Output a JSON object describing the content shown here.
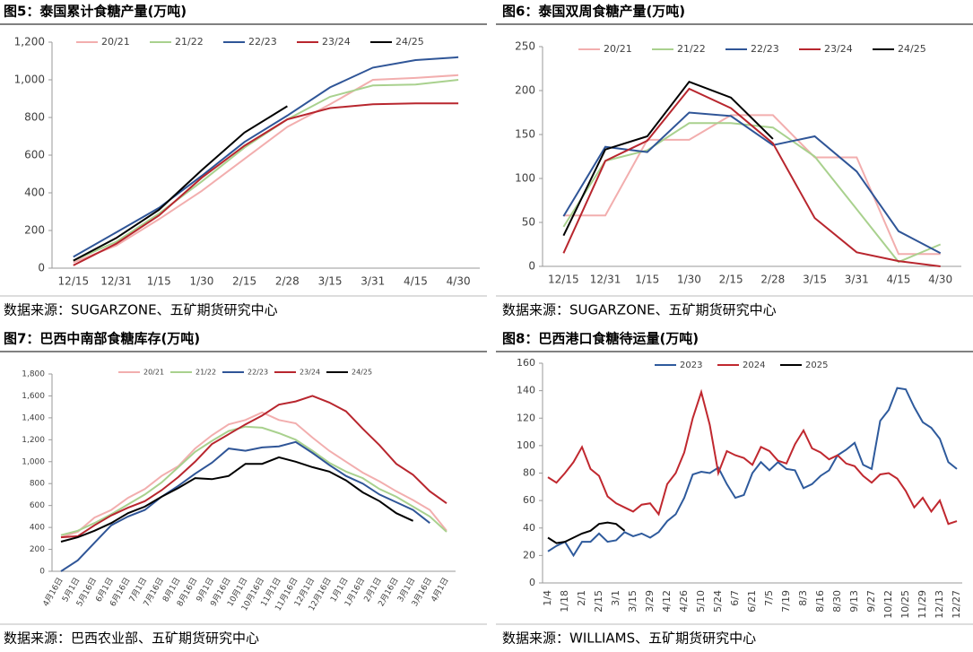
{
  "chart_data": [
    {
      "type": "line",
      "title": "图5：泰国累计食糖产量(万吨)",
      "source": "数据来源：SUGARZONE、五矿期货研究中心",
      "categories": [
        "12/15",
        "12/31",
        "1/15",
        "1/30",
        "2/15",
        "2/28",
        "3/15",
        "3/31",
        "4/15",
        "4/30"
      ],
      "ylim": [
        0,
        1200
      ],
      "yticks": [
        0,
        200,
        400,
        600,
        800,
        {
          "value": 1000,
          "label": "1,000"
        },
        {
          "value": 1200,
          "label": "1,200"
        }
      ],
      "legend": "top",
      "series": [
        {
          "name": "20/21",
          "color": "#f2aeae",
          "values": [
            30,
            120,
            260,
            410,
            580,
            750,
            870,
            1000,
            1010,
            1025
          ]
        },
        {
          "name": "21/22",
          "color": "#a9d18e",
          "values": [
            40,
            140,
            290,
            460,
            640,
            790,
            910,
            970,
            975,
            1000
          ]
        },
        {
          "name": "22/23",
          "color": "#2f5597",
          "values": [
            60,
            190,
            320,
            490,
            670,
            810,
            960,
            1065,
            1105,
            1120
          ]
        },
        {
          "name": "23/24",
          "color": "#b8262e",
          "values": [
            15,
            130,
            280,
            480,
            650,
            790,
            850,
            870,
            875,
            875
          ]
        },
        {
          "name": "24/25",
          "color": "#000000",
          "values": [
            40,
            160,
            310,
            520,
            720,
            860,
            null,
            null,
            null,
            null
          ]
        }
      ]
    },
    {
      "type": "line",
      "title": "图6：泰国双周食糖产量(万吨)",
      "source": "数据来源：SUGARZONE、五矿期货研究中心",
      "categories": [
        "12/15",
        "12/31",
        "1/15",
        "1/30",
        "2/15",
        "2/28",
        "3/15",
        "3/31",
        "4/15",
        "4/30"
      ],
      "ylim": [
        0,
        250
      ],
      "yticks": [
        0,
        50,
        100,
        150,
        200,
        250
      ],
      "legend": "top",
      "series": [
        {
          "name": "20/21",
          "color": "#f2aeae",
          "values": [
            58,
            58,
            144,
            144,
            172,
            172,
            124,
            124,
            14,
            14
          ]
        },
        {
          "name": "21/22",
          "color": "#a9d18e",
          "values": [
            45,
            120,
            132,
            163,
            163,
            158,
            125,
            65,
            5,
            25
          ]
        },
        {
          "name": "22/23",
          "color": "#2f5597",
          "values": [
            57,
            136,
            130,
            175,
            171,
            138,
            148,
            108,
            40,
            15
          ]
        },
        {
          "name": "23/24",
          "color": "#b8262e",
          "values": [
            15,
            120,
            143,
            202,
            180,
            140,
            55,
            16,
            6,
            0
          ]
        },
        {
          "name": "24/25",
          "color": "#000000",
          "values": [
            35,
            133,
            148,
            210,
            192,
            145,
            null,
            null,
            null,
            null
          ]
        }
      ]
    },
    {
      "type": "line",
      "title": "图7：巴西中南部食糖库存(万吨)",
      "source": "数据来源：巴西农业部、五矿期货研究中心",
      "categories": [
        "4月16日",
        "5月1日",
        "5月16日",
        "6月1日",
        "6月16日",
        "7月1日",
        "7月16日",
        "8月1日",
        "8月16日",
        "9月1日",
        "9月16日",
        "10月1日",
        "10月16日",
        "11月1日",
        "11月16日",
        "12月1日",
        "12月16日",
        "1月1日",
        "1月16日",
        "2月1日",
        "2月16日",
        "3月1日",
        "3月16日",
        "4月1日"
      ],
      "ylim": [
        0,
        1800
      ],
      "yticks": [
        0,
        200,
        400,
        600,
        800,
        {
          "value": 1000,
          "label": "1,000"
        },
        {
          "value": 1200,
          "label": "1,200"
        },
        {
          "value": 1400,
          "label": "1,400"
        },
        {
          "value": 1600,
          "label": "1,600"
        },
        {
          "value": 1800,
          "label": "1,800"
        }
      ],
      "legend": "top",
      "series": [
        {
          "name": "20/21",
          "color": "#f2aeae",
          "values": [
            310,
            360,
            490,
            560,
            670,
            750,
            870,
            960,
            1120,
            1240,
            1340,
            1380,
            1450,
            1380,
            1350,
            1220,
            1100,
            1000,
            900,
            820,
            730,
            650,
            560,
            370
          ]
        },
        {
          "name": "21/22",
          "color": "#a9d18e",
          "values": [
            330,
            370,
            440,
            520,
            610,
            700,
            810,
            950,
            1090,
            1190,
            1280,
            1320,
            1310,
            1260,
            1200,
            1100,
            990,
            910,
            850,
            750,
            680,
            590,
            500,
            360
          ]
        },
        {
          "name": "22/23",
          "color": "#2f5597",
          "values": [
            0,
            100,
            260,
            420,
            500,
            560,
            680,
            780,
            890,
            990,
            1120,
            1100,
            1130,
            1140,
            1180,
            1080,
            970,
            870,
            800,
            700,
            630,
            560,
            440,
            null
          ]
        },
        {
          "name": "23/24",
          "color": "#b8262e",
          "values": [
            310,
            320,
            420,
            510,
            580,
            640,
            740,
            860,
            1000,
            1160,
            1250,
            1340,
            1420,
            1520,
            1550,
            1600,
            1540,
            1460,
            1300,
            1150,
            980,
            880,
            730,
            620
          ]
        },
        {
          "name": "24/25",
          "color": "#000000",
          "values": [
            270,
            310,
            370,
            440,
            530,
            590,
            680,
            760,
            850,
            840,
            870,
            980,
            980,
            1040,
            1000,
            950,
            910,
            830,
            720,
            640,
            530,
            460,
            null,
            null
          ]
        }
      ]
    },
    {
      "type": "line",
      "title": "图8：巴西港口食糖待运量(万吨)",
      "source": "数据来源：WILLIAMS、五矿期货研究中心",
      "categories": [
        "1/4",
        null,
        "1/18",
        null,
        "2/1",
        null,
        "2/15",
        null,
        "3/1",
        null,
        "3/15",
        null,
        "3/29",
        null,
        "4/12",
        null,
        "4/26",
        null,
        "5/10",
        null,
        "5/24",
        null,
        "6/7",
        null,
        "6/21",
        null,
        "7/5",
        null,
        "7/19",
        null,
        "8/3",
        null,
        "8/16",
        null,
        "8/30",
        null,
        "9/13",
        null,
        "9/27",
        null,
        "10/12",
        null,
        "10/25",
        null,
        "11/29",
        null,
        "12/13",
        null,
        "12/27"
      ],
      "ylim": [
        0,
        160
      ],
      "yticks": [
        0,
        20,
        40,
        60,
        80,
        100,
        120,
        140,
        160
      ],
      "legend": "top",
      "series": [
        {
          "name": "2023",
          "color": "#2e5a9c",
          "values": [
            23,
            27,
            30,
            20,
            30,
            30,
            36,
            30,
            31,
            37,
            34,
            36,
            33,
            37,
            45,
            50,
            62,
            79,
            81,
            80,
            84,
            72,
            62,
            64,
            80,
            88,
            82,
            88,
            83,
            82,
            69,
            72,
            78,
            82,
            93,
            97,
            102,
            86,
            83,
            118,
            126,
            142,
            141,
            128,
            117,
            113,
            105,
            88,
            83
          ]
        },
        {
          "name": "2024",
          "color": "#c0282f",
          "values": [
            77,
            73,
            80,
            88,
            99,
            83,
            78,
            63,
            58,
            55,
            52,
            57,
            58,
            50,
            72,
            80,
            95,
            120,
            139,
            115,
            80,
            96,
            93,
            91,
            86,
            99,
            96,
            89,
            87,
            101,
            111,
            98,
            95,
            90,
            93,
            87,
            85,
            78,
            73,
            79,
            80,
            76,
            67,
            55,
            62,
            52,
            60,
            43,
            45
          ]
        },
        {
          "name": "2025",
          "color": "#000000",
          "values": [
            33,
            29,
            30,
            33,
            36,
            38,
            43,
            44,
            43,
            38,
            null,
            null,
            null,
            null,
            null,
            null,
            null,
            null,
            null,
            null,
            null,
            null,
            null,
            null,
            null,
            null,
            null,
            null,
            null,
            null,
            null,
            null,
            null,
            null,
            null,
            null,
            null,
            null,
            null,
            null,
            null,
            null,
            null,
            null,
            null,
            null,
            null,
            null,
            null
          ]
        }
      ]
    }
  ]
}
